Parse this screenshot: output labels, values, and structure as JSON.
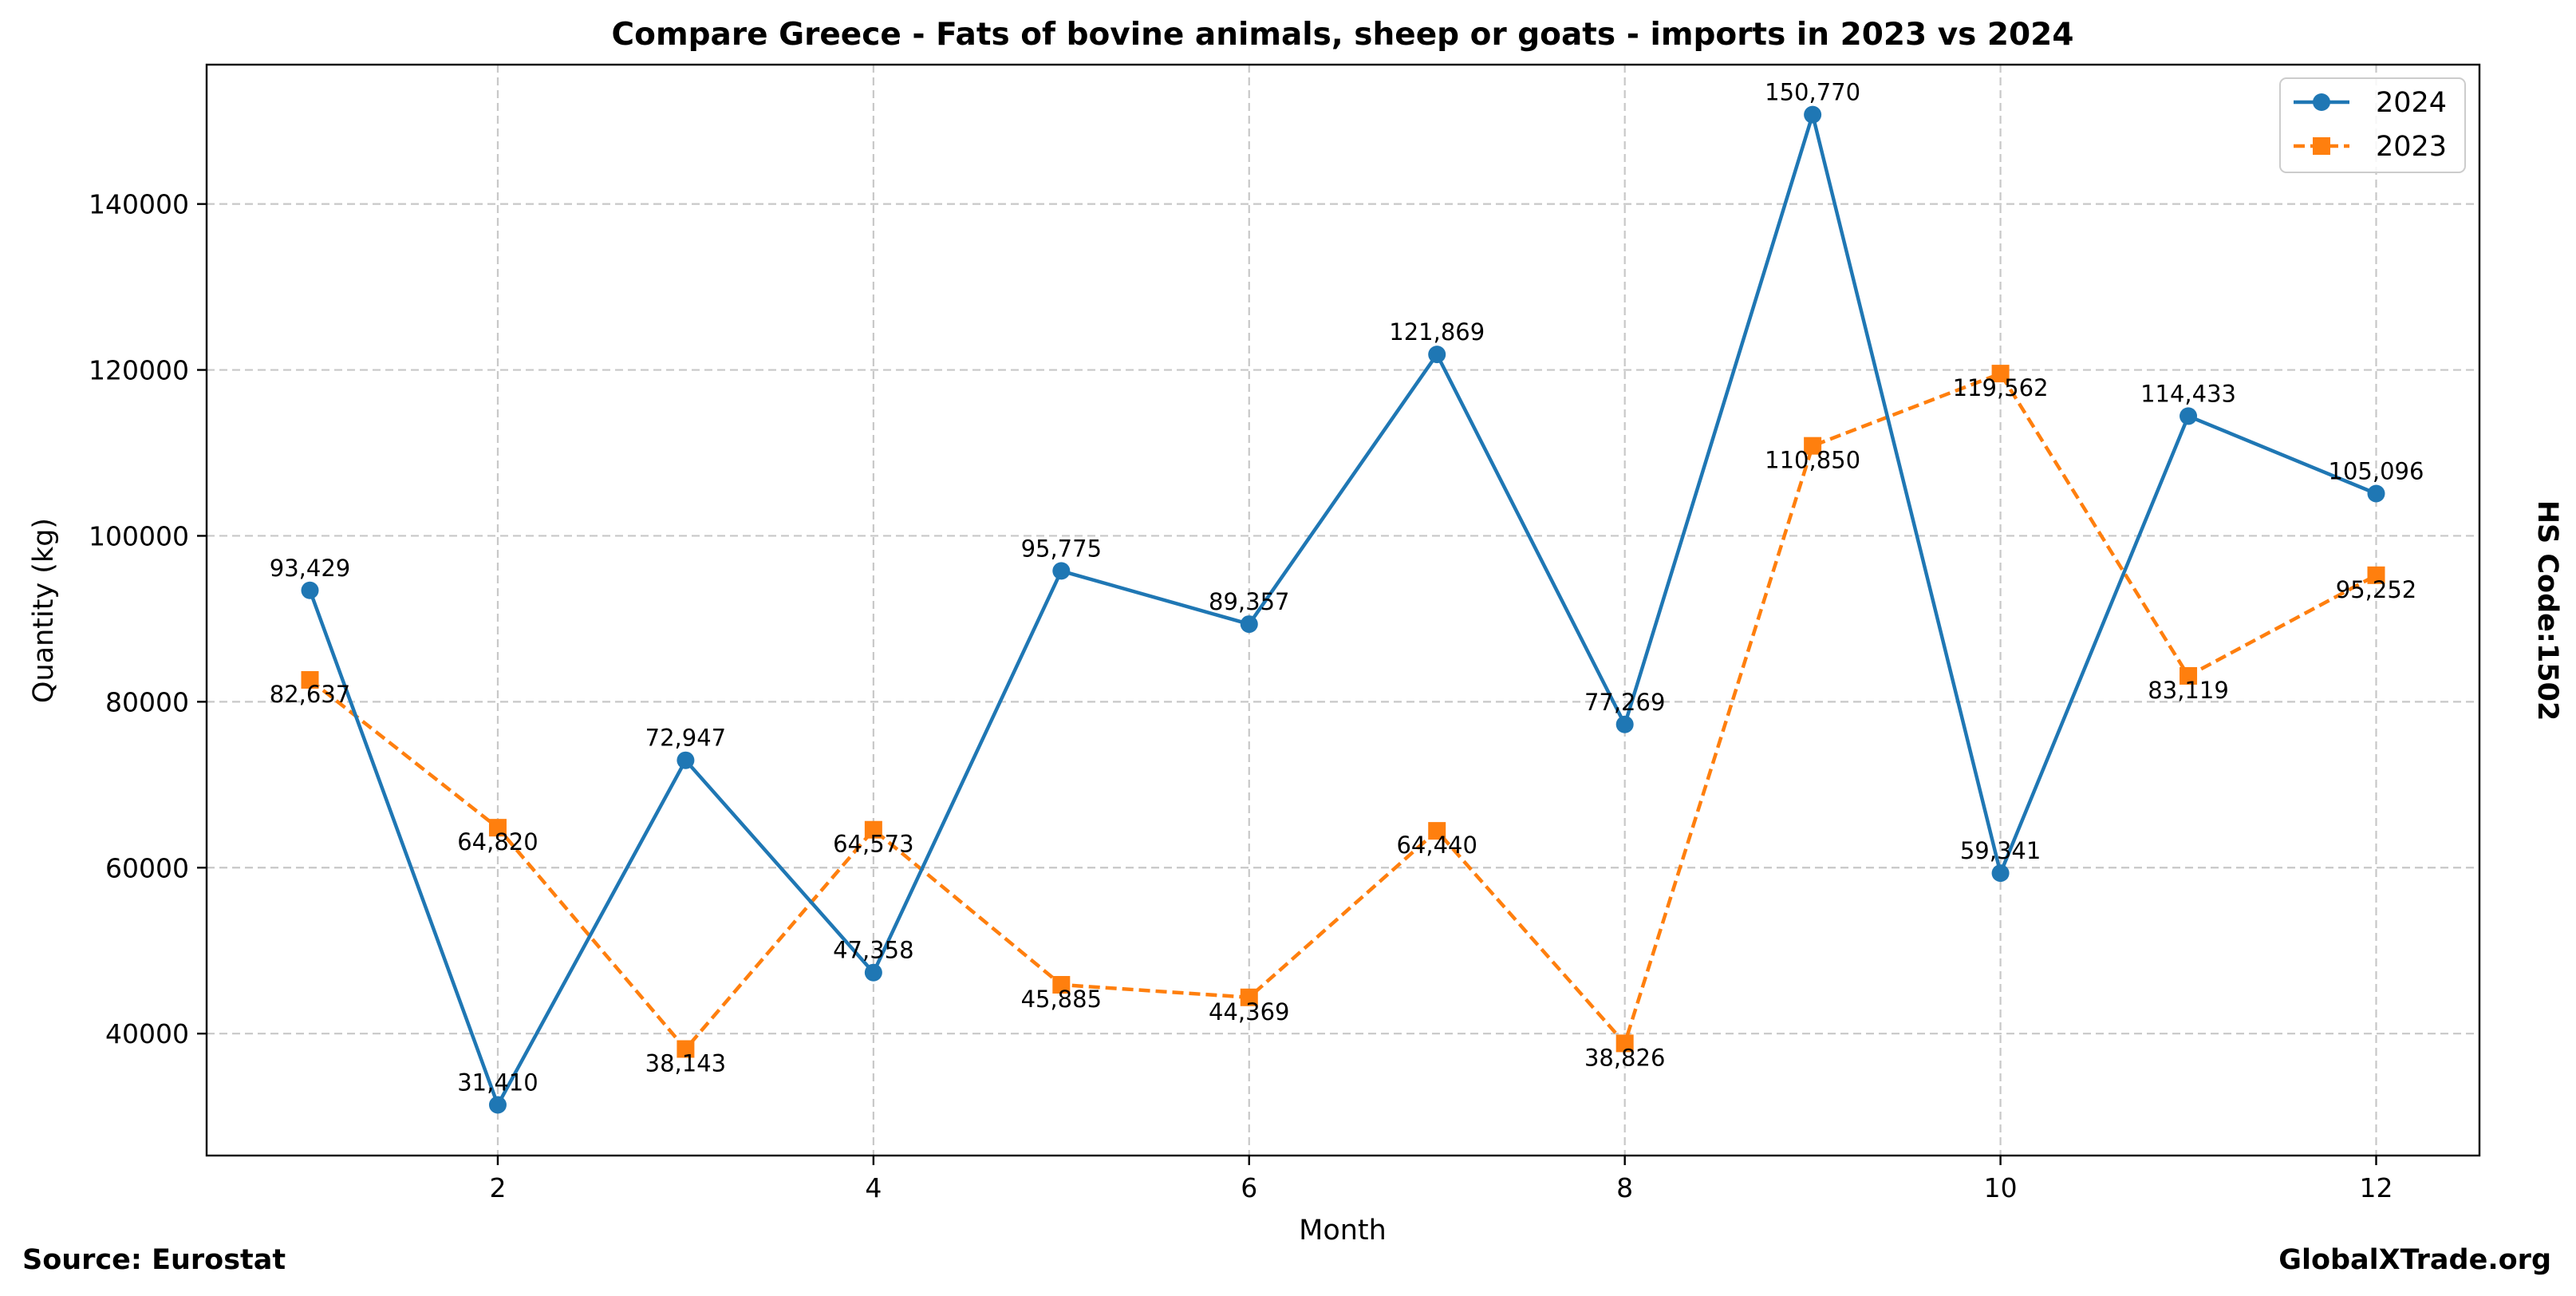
{
  "chart_data": {
    "type": "line",
    "title": "Compare Greece - Fats of bovine animals, sheep or goats - imports in 2023 vs 2024",
    "xlabel": "Month",
    "ylabel": "Quantity (kg)",
    "x": [
      1,
      2,
      3,
      4,
      5,
      6,
      7,
      8,
      9,
      10,
      11,
      12
    ],
    "xticks": [
      2,
      4,
      6,
      8,
      10,
      12
    ],
    "xlim": [
      0.45,
      12.55
    ],
    "yticks": [
      40000,
      60000,
      80000,
      100000,
      120000,
      140000
    ],
    "ylim": [
      25300,
      156800
    ],
    "grid": true,
    "legend_position": "top-right",
    "series": [
      {
        "name": "2024",
        "color": "#1f77b4",
        "line_style": "solid",
        "marker": "circle",
        "values": [
          93429,
          31410,
          72947,
          47358,
          95775,
          89357,
          121869,
          77269,
          150770,
          59341,
          114433,
          105096
        ],
        "labels": [
          "93,429",
          "31,410",
          "72,947",
          "47,358",
          "95,775",
          "89,357",
          "121,869",
          "77,269",
          "150,770",
          "59,341",
          "114,433",
          "105,096"
        ]
      },
      {
        "name": "2023",
        "color": "#ff7f0e",
        "line_style": "dashed",
        "marker": "square",
        "values": [
          82637,
          64820,
          38143,
          64573,
          45885,
          44369,
          64440,
          38826,
          110850,
          119562,
          83119,
          95252
        ],
        "labels": [
          "82,637",
          "64,820",
          "38,143",
          "64,573",
          "45,885",
          "44,369",
          "64,440",
          "38,826",
          "110,850",
          "119,562",
          "83,119",
          "95,252"
        ]
      }
    ]
  },
  "side_label": "HS Code:1502",
  "footer": {
    "source": "Source: Eurostat",
    "brand": "GlobalXTrade.org"
  }
}
